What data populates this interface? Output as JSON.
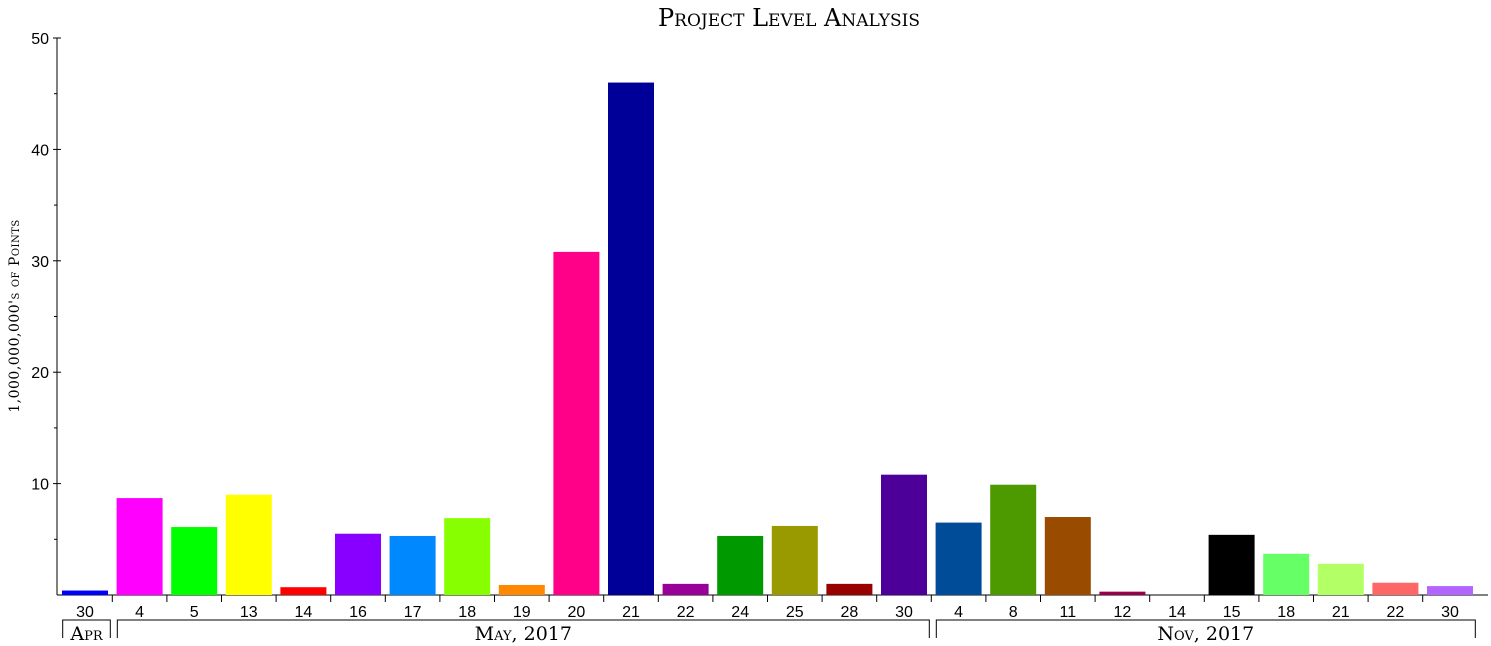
{
  "chart_data": {
    "type": "bar",
    "title": "Project Level Analysis",
    "ylabel": "1,000,000,000's of Points",
    "xlabel": "",
    "ylim": [
      0,
      50
    ],
    "yticks": [
      10,
      20,
      30,
      40,
      50
    ],
    "grid": false,
    "legend": "none",
    "categories": [
      "30",
      "4",
      "5",
      "13",
      "14",
      "16",
      "17",
      "18",
      "19",
      "20",
      "21",
      "22",
      "24",
      "25",
      "28",
      "30",
      "4",
      "8",
      "11",
      "12",
      "14",
      "15",
      "18",
      "21",
      "22",
      "30"
    ],
    "values": [
      0.4,
      8.7,
      6.1,
      9.0,
      0.7,
      5.5,
      5.3,
      6.9,
      0.9,
      30.8,
      46.0,
      1.0,
      5.3,
      6.2,
      1.0,
      10.8,
      6.5,
      9.9,
      7.0,
      0.3,
      0.0,
      5.4,
      3.7,
      2.8,
      1.1,
      0.8
    ],
    "colors": [
      "#0000ff",
      "#ff00ff",
      "#00ff00",
      "#ffff00",
      "#ff0000",
      "#8800ff",
      "#0088ff",
      "#88ff00",
      "#ff8800",
      "#ff0088",
      "#000099",
      "#990099",
      "#009900",
      "#999900",
      "#990000",
      "#4c0099",
      "#004c99",
      "#4c9900",
      "#994c00",
      "#99004c",
      "#004c4c",
      "#000000",
      "#66ff66",
      "#b3ff66",
      "#ff6666",
      "#b366ff"
    ],
    "groups": [
      {
        "label": "Apr",
        "start": 0,
        "end": 0
      },
      {
        "label": "May, 2017",
        "start": 1,
        "end": 15
      },
      {
        "label": "Nov, 2017",
        "start": 16,
        "end": 25
      }
    ]
  }
}
